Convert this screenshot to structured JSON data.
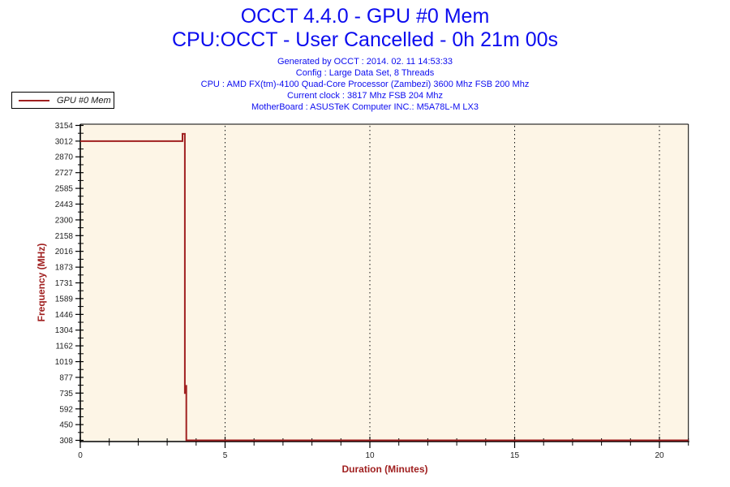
{
  "header": {
    "title": "OCCT 4.4.0 - GPU #0 Mem",
    "subtitle": "CPU:OCCT - User Cancelled - 0h 21m 00s"
  },
  "info_lines": [
    "Generated by OCCT : 2014. 02. 11 14:53:33",
    "Config : Large Data Set, 8 Threads",
    "CPU : AMD FX(tm)-4100 Quad-Core Processor (Zambezi) 3600 Mhz FSB 200 Mhz",
    "Current clock : 3817 Mhz FSB 204 Mhz",
    "MotherBoard : ASUSTeK Computer INC.: M5A78L-M LX3"
  ],
  "legend": {
    "label": "GPU #0 Mem",
    "line_color": "#A02020"
  },
  "colors": {
    "title_blue": "#0C0CEF",
    "accent_red": "#A02020",
    "plot_bg": "#FDF5E6",
    "axis_black": "#000000",
    "tick_text": "#1F1F1F"
  },
  "chart_data": {
    "type": "line",
    "title": "OCCT 4.4.0 - GPU #0 Mem",
    "xlabel": "Duration (Minutes)",
    "ylabel": "Frequency (MHz)",
    "x_range": [
      0,
      21
    ],
    "y_range": [
      308,
      3154
    ],
    "x_major_ticks": [
      0,
      5,
      10,
      15,
      20
    ],
    "x_minor_tick_step": 1,
    "y_ticks": [
      3154,
      3012,
      2870,
      2727,
      2585,
      2443,
      2300,
      2158,
      2016,
      1873,
      1731,
      1589,
      1446,
      1304,
      1162,
      1019,
      877,
      735,
      592,
      450,
      308
    ],
    "gridlines_x": [
      5,
      10,
      15,
      20
    ],
    "grid_style": "dotted-vertical-only",
    "legend_position": "top-left-outside",
    "series": [
      {
        "name": "GPU #0 Mem",
        "color": "#A02020",
        "points": [
          [
            0,
            3012
          ],
          [
            3.53,
            3012
          ],
          [
            3.53,
            3078
          ],
          [
            3.61,
            3078
          ],
          [
            3.61,
            735
          ],
          [
            3.63,
            735
          ],
          [
            3.63,
            800
          ],
          [
            3.66,
            800
          ],
          [
            3.66,
            308
          ],
          [
            21,
            308
          ]
        ]
      }
    ]
  }
}
